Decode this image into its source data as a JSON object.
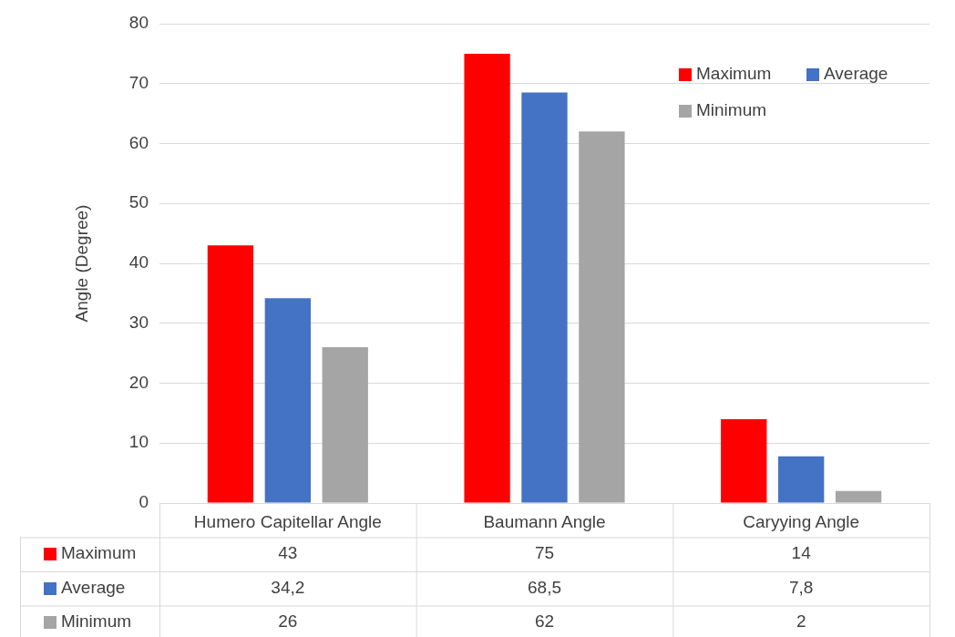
{
  "chart_data": {
    "type": "bar",
    "ylabel": "Angle (Degree)",
    "categories": [
      "Humero Capitellar Angle",
      "Baumann Angle",
      "Caryying Angle"
    ],
    "series": [
      {
        "name": "Maximum",
        "color": "#ff0000",
        "values": [
          43,
          75,
          14
        ],
        "value_labels": [
          "43",
          "75",
          "14"
        ]
      },
      {
        "name": "Average",
        "color": "#4472c4",
        "values": [
          34.2,
          68.5,
          7.8
        ],
        "value_labels": [
          "34,2",
          "68,5",
          "7,8"
        ]
      },
      {
        "name": "Minimum",
        "color": "#a5a5a5",
        "values": [
          26,
          62,
          2
        ],
        "value_labels": [
          "26",
          "62",
          "2"
        ]
      }
    ],
    "ylim": [
      0,
      80
    ],
    "yticks": [
      0,
      10,
      20,
      30,
      40,
      50,
      60,
      70,
      80
    ],
    "grid": "y",
    "legend": "top right"
  }
}
